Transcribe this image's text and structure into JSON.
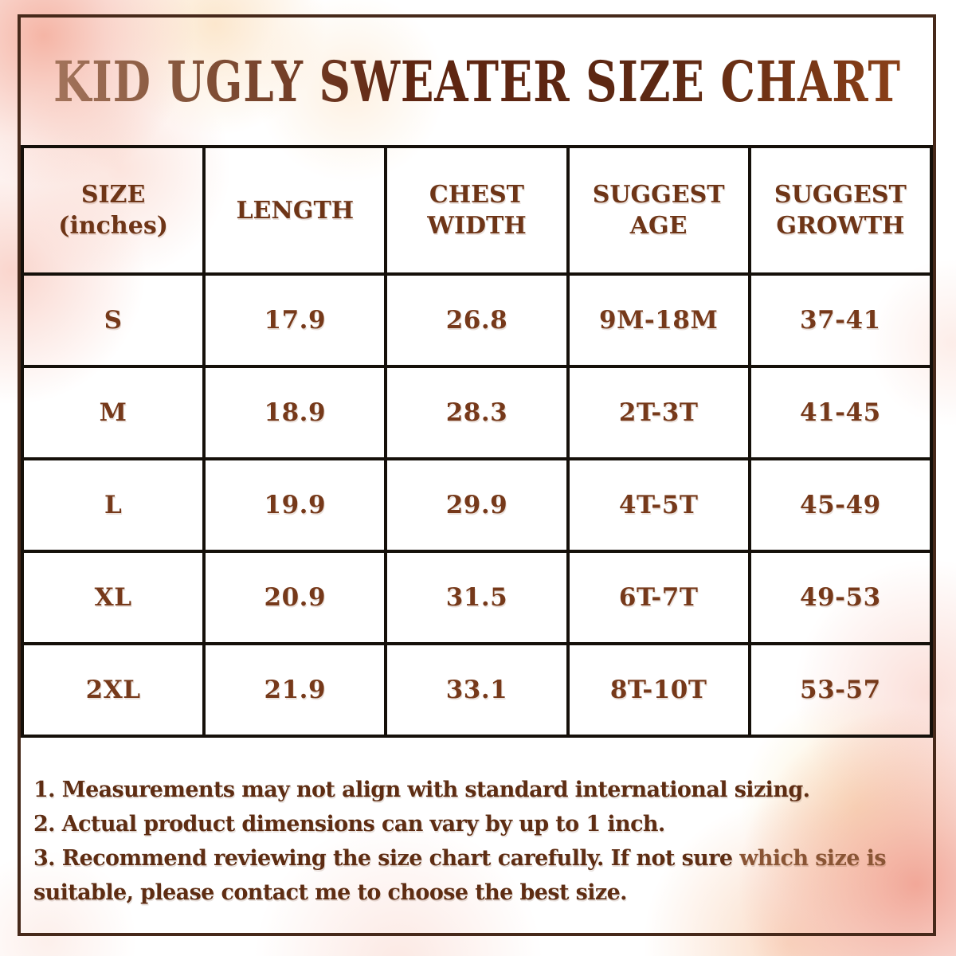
{
  "title": "KID UGLY SWEATER SIZE CHART",
  "table": {
    "headers": [
      {
        "line1": "SIZE",
        "line2": "(inches)"
      },
      {
        "line1": "LENGTH"
      },
      {
        "line1": "CHEST",
        "line2": "WIDTH"
      },
      {
        "line1": "SUGGEST",
        "line2": "AGE"
      },
      {
        "line1": "SUGGEST",
        "line2": "GROWTH"
      }
    ],
    "rows": [
      {
        "size": "S",
        "length": "17.9",
        "chest_width": "26.8",
        "suggest_age": "9M-18M",
        "suggest_growth": "37-41"
      },
      {
        "size": "M",
        "length": "18.9",
        "chest_width": "28.3",
        "suggest_age": "2T-3T",
        "suggest_growth": "41-45"
      },
      {
        "size": "L",
        "length": "19.9",
        "chest_width": "29.9",
        "suggest_age": "4T-5T",
        "suggest_growth": "45-49"
      },
      {
        "size": "XL",
        "length": "20.9",
        "chest_width": "31.5",
        "suggest_age": "6T-7T",
        "suggest_growth": "49-53"
      },
      {
        "size": "2XL",
        "length": "21.9",
        "chest_width": "33.1",
        "suggest_age": "8T-10T",
        "suggest_growth": "53-57"
      }
    ]
  },
  "notes": {
    "line1": "1. Measurements may not align with standard international sizing.",
    "line2": "2. Actual product dimensions can vary by up to 1 inch.",
    "line3_part1": "3. Recommend reviewing the size chart carefully. If not sure ",
    "line3_highlight": "which size is",
    "line3_part2": "suitable, please contact me to choose the best size."
  },
  "colors": {
    "title_brown_dark": "#5F2511",
    "title_brown_light": "#A3745C",
    "table_text_brown": "#76391A",
    "notes_text_brown": "#5E2D13",
    "note_highlight_brown": "#8A5535",
    "grid_line_black": "#15100A",
    "frame_border_brown": "#46291A",
    "wash_pink": "#F5BCAB",
    "wash_salmon": "#F0A898",
    "wash_peach": "#FBDFBD"
  },
  "chart_data": {
    "type": "table",
    "title": "KID UGLY SWEATER SIZE CHART",
    "unit": "inches",
    "columns": [
      "SIZE (inches)",
      "LENGTH",
      "CHEST WIDTH",
      "SUGGEST AGE",
      "SUGGEST GROWTH"
    ],
    "rows": [
      [
        "S",
        17.9,
        26.8,
        "9M-18M",
        "37-41"
      ],
      [
        "M",
        18.9,
        28.3,
        "2T-3T",
        "41-45"
      ],
      [
        "L",
        19.9,
        29.9,
        "4T-5T",
        "45-49"
      ],
      [
        "XL",
        20.9,
        31.5,
        "6T-7T",
        "49-53"
      ],
      [
        "2XL",
        21.9,
        33.1,
        "8T-10T",
        "53-57"
      ]
    ]
  }
}
